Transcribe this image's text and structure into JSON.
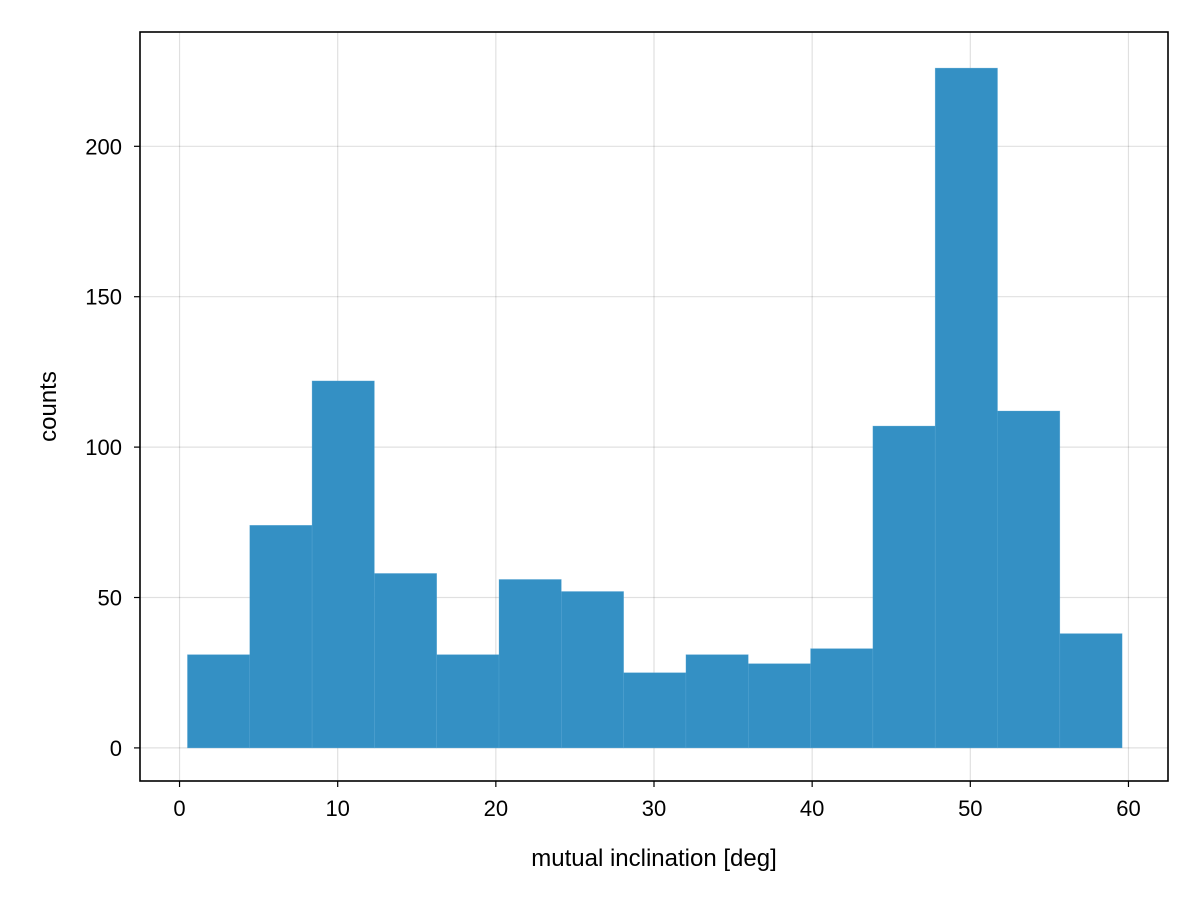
{
  "chart_data": {
    "type": "bar",
    "subtype": "histogram",
    "title": "",
    "xlabel": "mutual inclination [deg]",
    "ylabel": "counts",
    "xlim": [
      -2.5,
      62.5
    ],
    "ylim": [
      -11,
      238
    ],
    "xticks": [
      0,
      10,
      20,
      30,
      40,
      50,
      60
    ],
    "yticks": [
      0,
      50,
      100,
      150,
      200
    ],
    "grid": true,
    "bar_color": "#3490c4",
    "bins": [
      {
        "start": 0.5,
        "end": 4.44,
        "count": 31
      },
      {
        "start": 4.44,
        "end": 8.38,
        "count": 74
      },
      {
        "start": 8.38,
        "end": 12.32,
        "count": 122
      },
      {
        "start": 12.32,
        "end": 16.26,
        "count": 58
      },
      {
        "start": 16.26,
        "end": 20.2,
        "count": 31
      },
      {
        "start": 20.2,
        "end": 24.14,
        "count": 56
      },
      {
        "start": 24.14,
        "end": 28.08,
        "count": 52
      },
      {
        "start": 28.08,
        "end": 32.02,
        "count": 25
      },
      {
        "start": 32.02,
        "end": 35.96,
        "count": 31
      },
      {
        "start": 35.96,
        "end": 39.9,
        "count": 28
      },
      {
        "start": 39.9,
        "end": 43.84,
        "count": 33
      },
      {
        "start": 43.84,
        "end": 47.78,
        "count": 107
      },
      {
        "start": 47.78,
        "end": 51.72,
        "count": 226
      },
      {
        "start": 51.72,
        "end": 55.66,
        "count": 112
      },
      {
        "start": 55.66,
        "end": 59.6,
        "count": 38
      }
    ]
  }
}
